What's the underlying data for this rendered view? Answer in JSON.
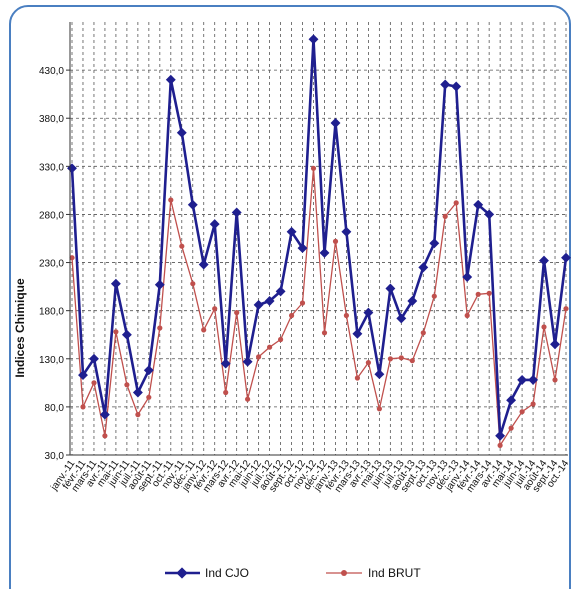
{
  "chart_data": {
    "type": "line",
    "title": "",
    "ylabel": "Indices Chimique",
    "xlabel": "",
    "ylim": [
      30,
      480
    ],
    "yticks": [
      30,
      80,
      130,
      180,
      230,
      280,
      330,
      380,
      430
    ],
    "ytick_labels": [
      "30,0",
      "80,0",
      "130,0",
      "180,0",
      "230,0",
      "280,0",
      "330,0",
      "380,0",
      "430,0"
    ],
    "grid": true,
    "legend_position": "bottom",
    "categories": [
      "janv.-11",
      "févr.-11",
      "mars-11",
      "avr.-11",
      "mai-11",
      "juin-11",
      "juil.-11",
      "août-11",
      "sept.-11",
      "oct.-11",
      "nov.-11",
      "déc.-11",
      "janv.-12",
      "févr.-12",
      "mars-12",
      "avr.-12",
      "mai-12",
      "juin-12",
      "juil.-12",
      "août-12",
      "sept.-12",
      "oct.-12",
      "nov.-12",
      "déc.-12",
      "janv.-13",
      "févr.-13",
      "mars-13",
      "avr.-13",
      "mai-13",
      "juin-13",
      "juil.-13",
      "août-13",
      "sept.-13",
      "oct.-13",
      "nov.-13",
      "déc.-13",
      "janv.-14",
      "févr.-14",
      "mars-14",
      "avr.-14",
      "mai-14",
      "juin-14",
      "juil.-14",
      "août-14",
      "sept.-14",
      "oct.-14"
    ],
    "x_tick_labels": [
      "janv.-11",
      "févr.-11",
      "mars-11",
      "avr.-11",
      "mai-11",
      "juin-11",
      "juil.-11",
      "août-11",
      "sept.-11",
      "oct.-11",
      "nov.-11",
      "déc.-11",
      "janv.-12",
      "févr.-12",
      "mars-12",
      "avr.-12",
      "mai-12",
      "juin-12",
      "juil.-12",
      "août-12",
      "sept.-12",
      "oct.-12",
      "nov.-12",
      "déc.-12",
      "janv.-13",
      "févr.-13",
      "mars-13",
      "avr.-13",
      "mai-13",
      "juin-13",
      "juil.-13",
      "août-13",
      "sept.-13",
      "oct.-13",
      "nov.-13",
      "déc.-13",
      "janv.-14",
      "févr.-14",
      "mars-14",
      "avr.-14",
      "mai-14",
      "juin-14",
      "juil.-14",
      "août-14",
      "sept.-14",
      "oct.-14"
    ],
    "series": [
      {
        "name": "Ind CJO",
        "color": "#1f1f8f",
        "marker": "diamond",
        "values": [
          328,
          113,
          130,
          72,
          208,
          155,
          95,
          118,
          207,
          420,
          365,
          290,
          228,
          270,
          125,
          282,
          127,
          186,
          190,
          200,
          262,
          245,
          462,
          240,
          375,
          262,
          156,
          178,
          114,
          203,
          172,
          190,
          225,
          250,
          415,
          413,
          215,
          290,
          280,
          50,
          87,
          108,
          108,
          232,
          145,
          235
        ]
      },
      {
        "name": "Ind BRUT",
        "color": "#c0504d",
        "marker": "circle",
        "values": [
          235,
          80,
          105,
          50,
          158,
          103,
          72,
          90,
          162,
          295,
          247,
          208,
          160,
          182,
          95,
          178,
          88,
          132,
          142,
          150,
          175,
          188,
          328,
          157,
          252,
          175,
          110,
          126,
          78,
          130,
          131,
          128,
          157,
          195,
          278,
          292,
          175,
          197,
          198,
          40,
          58,
          75,
          83,
          163,
          108,
          182
        ]
      }
    ]
  }
}
